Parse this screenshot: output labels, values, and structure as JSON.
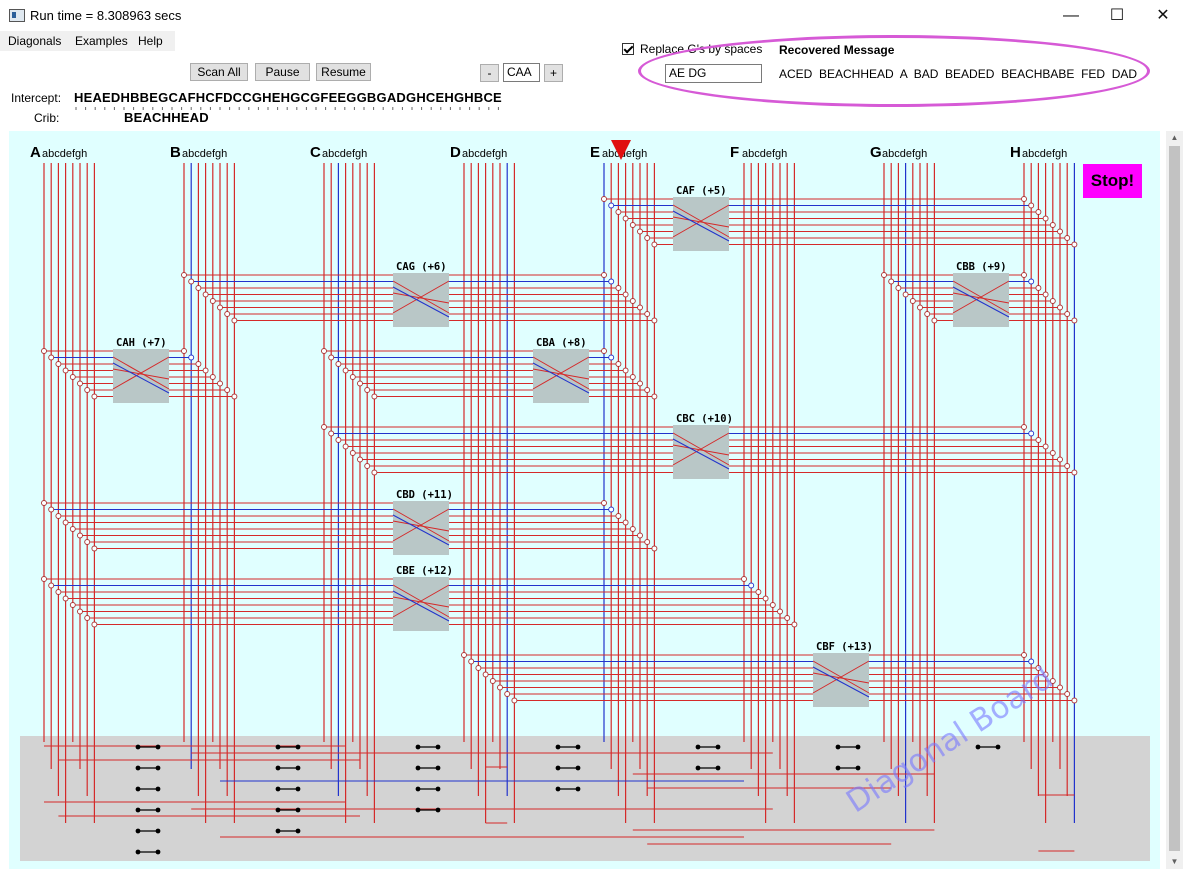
{
  "window": {
    "title": "Run time = 8.308963 secs"
  },
  "menu": [
    "Diagonals",
    "Examples",
    "Help"
  ],
  "toolbar": {
    "scan_all": "Scan All",
    "pause": "Pause",
    "resume": "Resume",
    "minus": "-",
    "plus": "+",
    "rotor_value": "CAA"
  },
  "intercept": {
    "label": "Intercept:",
    "value": "HEAEDHBBEGCAFHCFDCCGHEHGCGFEEGGBGADGHCEHGHBCE"
  },
  "crib": {
    "label": "Crib:",
    "value": "BEACHHEAD"
  },
  "options": {
    "replace_label": "Replace G's by spaces",
    "replace_checked": true,
    "spaces_input": "AE  DG"
  },
  "recovered": {
    "title": "Recovered Message",
    "text": "ACED  BEACHHEAD  A  BAD  BEADED  BEACHBABE  FED  DAD"
  },
  "board": {
    "letters": [
      "A",
      "B",
      "C",
      "D",
      "E",
      "F",
      "G",
      "H"
    ],
    "sublabel": "abcdefgh",
    "stop_label": "Stop!",
    "watermark": "Diagonal Board",
    "scramblers": [
      {
        "label": "CAF  (+5)"
      },
      {
        "label": "CAG  (+6)"
      },
      {
        "label": "CBB  (+9)"
      },
      {
        "label": "CAH  (+7)"
      },
      {
        "label": "CBA  (+8)"
      },
      {
        "label": "CBC  (+10)"
      },
      {
        "label": "CBD  (+11)"
      },
      {
        "label": "CBE  (+12)"
      },
      {
        "label": "CBF  (+13)"
      }
    ]
  },
  "colors": {
    "wire": "#d42a2a",
    "active_wire": "#2233cc",
    "scrambler": "#b9c7c7",
    "board_bg": "#e0ffff",
    "stop": "#ff00ff",
    "highlight": "#d65ad6"
  }
}
